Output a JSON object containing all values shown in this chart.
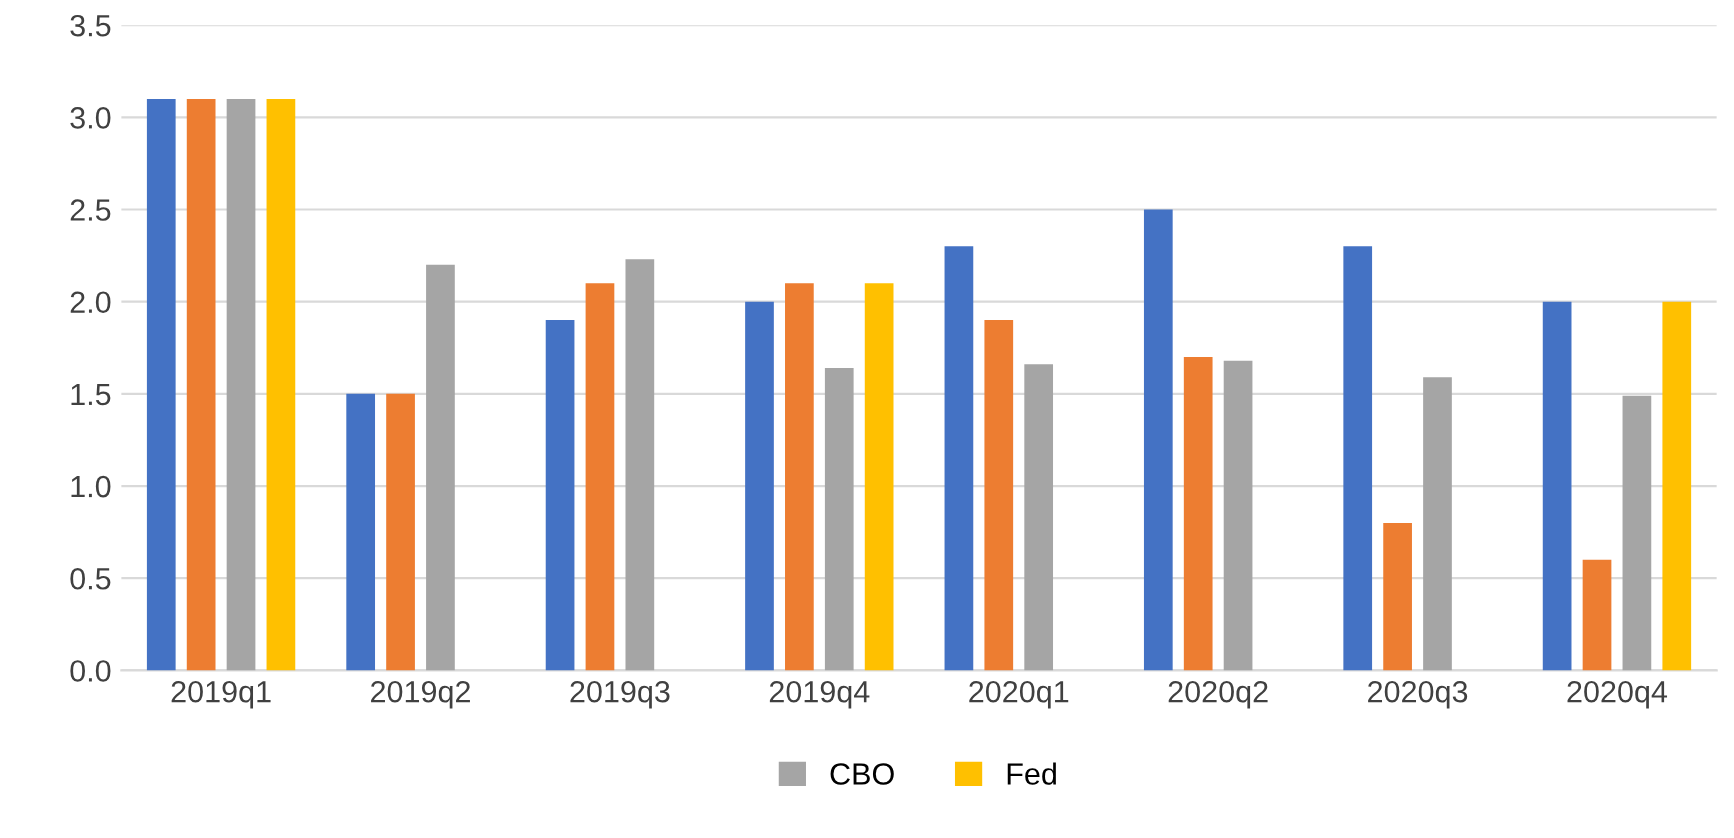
{
  "chart_data": {
    "type": "bar",
    "categories": [
      "2019q1",
      "2019q2",
      "2019q3",
      "2019q4",
      "2020q1",
      "2020q2",
      "2020q3",
      "2020q4"
    ],
    "series": [
      {
        "color": "#4472c4",
        "values": [
          3.1,
          1.5,
          1.9,
          2.0,
          2.3,
          2.5,
          2.3,
          2.0
        ]
      },
      {
        "color": "#ed7d31",
        "values": [
          3.1,
          1.5,
          2.1,
          2.1,
          1.9,
          1.7,
          0.8,
          0.6
        ]
      },
      {
        "name": "CBO",
        "color": "#a5a5a5",
        "values": [
          3.1,
          2.2,
          2.23,
          1.64,
          1.66,
          1.68,
          1.59,
          1.49
        ]
      },
      {
        "name": "Fed",
        "color": "#ffc000",
        "values": [
          3.1,
          null,
          null,
          2.1,
          null,
          null,
          null,
          2.0
        ]
      }
    ],
    "ylim": [
      0,
      3.5
    ],
    "yticks": [
      {
        "value": 0,
        "label": "0.0"
      },
      {
        "value": 0.5,
        "label": "0.5"
      },
      {
        "value": 1,
        "label": "1.0"
      },
      {
        "value": 1.5,
        "label": "1.5"
      },
      {
        "value": 2,
        "label": "2.0"
      },
      {
        "value": 2.5,
        "label": "2.5"
      },
      {
        "value": 3,
        "label": "3.0"
      },
      {
        "value": 3.5,
        "label": "3.5"
      }
    ],
    "grid": "y",
    "legend": "bottom"
  }
}
